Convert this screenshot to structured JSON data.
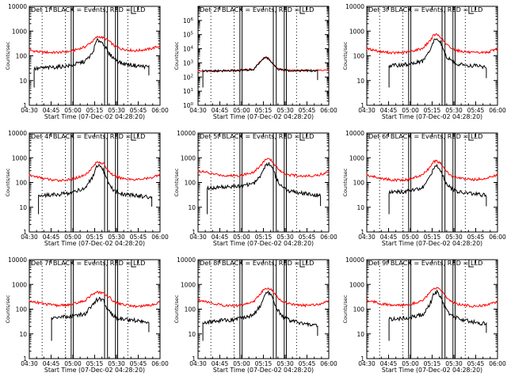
{
  "figure": {
    "title_template": "Det {n}f BLACK = Events, RED = LLD",
    "ylabel": "Counts/sec",
    "xlabel": "Start Time (07-Dec-02 04:28:20)",
    "x_tick_labels": [
      "04:30",
      "04:45",
      "05:00",
      "05:15",
      "05:30",
      "05:45",
      "06:00"
    ],
    "x_ticks_minutes_after_start": [
      1.67,
      16.67,
      31.67,
      46.67,
      61.67,
      76.67,
      91.67
    ],
    "x_range_minutes": [
      1.67,
      91.67
    ],
    "dotted_lines_minutes": [
      10.5,
      26.5,
      53.5,
      69.5
    ],
    "solid_line_pairs_minutes": [
      [
        30.5,
        32.0
      ],
      [
        53.5,
        55.5
      ],
      [
        61.0,
        62.5
      ]
    ],
    "event_flag_minutes": 72.0,
    "colors": {
      "events": "#000000",
      "lld": "#ff0000",
      "axes": "#000000",
      "background": "#ffffff"
    }
  },
  "chart_data": [
    {
      "type": "line",
      "title": "Det 1f BLACK = Events, RED = LLD",
      "detector": "1f",
      "ylabel": "Counts/sec",
      "xlabel": "Start Time (07-Dec-02 04:28:20)",
      "yscale": "log",
      "ylim": [
        1,
        10000
      ],
      "y_tick_labels": [
        "1",
        "10",
        "100",
        "1000",
        "10000"
      ],
      "x_minutes": [
        0,
        7,
        10,
        20,
        30,
        40,
        45,
        48,
        50,
        53,
        56,
        60,
        65,
        75,
        85,
        92
      ],
      "series": [
        {
          "name": "LLD",
          "color": "#ff0000",
          "values": [
            170,
            150,
            140,
            135,
            150,
            230,
            380,
            560,
            590,
            520,
            420,
            260,
            190,
            160,
            190,
            260
          ]
        },
        {
          "name": "Events",
          "color": "#000000",
          "x_start": 5,
          "x_end": 84,
          "values": [
            null,
            30,
            32,
            35,
            40,
            60,
            120,
            400,
            420,
            300,
            130,
            80,
            50,
            40,
            35,
            null
          ]
        }
      ]
    },
    {
      "type": "line",
      "title": "Det 2f BLACK = Events, RED = LLD",
      "detector": "2f",
      "ylabel": "Counts/sec",
      "xlabel": "Start Time (07-Dec-02 04:28:20)",
      "yscale": "log",
      "ylim": [
        1,
        10000000
      ],
      "y_tick_labels": [
        "10^0",
        "10^1",
        "10^2",
        "10^3",
        "10^4",
        "10^5",
        "10^6"
      ],
      "x_minutes": [
        0,
        7,
        10,
        20,
        30,
        40,
        45,
        48,
        50,
        53,
        56,
        60,
        65,
        75,
        85,
        92
      ],
      "series": [
        {
          "name": "LLD",
          "color": "#ff0000",
          "values": [
            280,
            270,
            270,
            280,
            300,
            350,
            1500,
            2600,
            2200,
            900,
            400,
            320,
            300,
            290,
            300,
            320
          ]
        },
        {
          "name": "Events",
          "color": "#000000",
          "x_start": 5,
          "x_end": 84,
          "values": [
            null,
            260,
            260,
            270,
            290,
            340,
            1400,
            2400,
            2000,
            850,
            380,
            300,
            290,
            280,
            280,
            null
          ]
        }
      ]
    },
    {
      "type": "line",
      "title": "Det 3f BLACK = Events, RED = LLD",
      "detector": "3f",
      "ylabel": "Counts/sec",
      "xlabel": "Start Time (07-Dec-02 04:28:20)",
      "yscale": "log",
      "ylim": [
        1,
        10000
      ],
      "y_tick_labels": [
        "1",
        "10",
        "100",
        "1000",
        "10000"
      ],
      "x_minutes": [
        0,
        7,
        10,
        20,
        30,
        40,
        45,
        48,
        50,
        53,
        56,
        60,
        65,
        75,
        85,
        92
      ],
      "series": [
        {
          "name": "LLD",
          "color": "#ff0000",
          "values": [
            200,
            170,
            150,
            130,
            140,
            200,
            400,
            700,
            720,
            550,
            300,
            200,
            160,
            130,
            140,
            200
          ]
        },
        {
          "name": "Events",
          "color": "#000000",
          "x_start": 17,
          "x_end": 84,
          "values": [
            null,
            null,
            null,
            40,
            45,
            60,
            150,
            420,
            500,
            300,
            100,
            60,
            45,
            40,
            35,
            null
          ]
        }
      ]
    },
    {
      "type": "line",
      "title": "Det 4f BLACK = Events, RED = LLD",
      "detector": "4f",
      "ylabel": "Counts/sec",
      "xlabel": "Start Time (07-Dec-02 04:28:20)",
      "yscale": "log",
      "ylim": [
        1,
        10000
      ],
      "y_tick_labels": [
        "1",
        "10",
        "100",
        "1000",
        "10000"
      ],
      "x_minutes": [
        0,
        7,
        10,
        20,
        30,
        40,
        45,
        48,
        50,
        53,
        56,
        60,
        65,
        75,
        85,
        92
      ],
      "series": [
        {
          "name": "LLD",
          "color": "#ff0000",
          "values": [
            200,
            170,
            150,
            120,
            130,
            200,
            400,
            650,
            680,
            550,
            300,
            180,
            150,
            130,
            150,
            220
          ]
        },
        {
          "name": "Events",
          "color": "#000000",
          "x_start": 8,
          "x_end": 86,
          "values": [
            null,
            30,
            30,
            32,
            38,
            60,
            150,
            400,
            450,
            280,
            90,
            45,
            35,
            30,
            25,
            null
          ]
        }
      ]
    },
    {
      "type": "line",
      "title": "Det 5f BLACK = Events, RED = LLD",
      "detector": "5f",
      "ylabel": "Counts/sec",
      "xlabel": "Start Time (07-Dec-02 04:28:20)",
      "yscale": "log",
      "ylim": [
        1,
        10000
      ],
      "y_tick_labels": [
        "1",
        "10",
        "100",
        "1000",
        "10000"
      ],
      "x_minutes": [
        0,
        7,
        10,
        20,
        30,
        40,
        45,
        48,
        50,
        53,
        56,
        60,
        65,
        75,
        85,
        92
      ],
      "series": [
        {
          "name": "LLD",
          "color": "#ff0000",
          "values": [
            300,
            260,
            230,
            190,
            190,
            260,
            500,
            850,
            900,
            700,
            400,
            250,
            200,
            180,
            200,
            280
          ]
        },
        {
          "name": "Events",
          "color": "#000000",
          "x_start": 8,
          "x_end": 86,
          "values": [
            null,
            55,
            60,
            65,
            70,
            90,
            200,
            500,
            600,
            400,
            130,
            60,
            45,
            35,
            30,
            null
          ]
        }
      ]
    },
    {
      "type": "line",
      "title": "Det 6f BLACK = Events, RED = LLD",
      "detector": "6f",
      "ylabel": "Counts/sec",
      "xlabel": "Start Time (07-Dec-02 04:28:20)",
      "yscale": "log",
      "ylim": [
        1,
        10000
      ],
      "y_tick_labels": [
        "1",
        "10",
        "100",
        "1000",
        "10000"
      ],
      "x_minutes": [
        0,
        7,
        10,
        20,
        30,
        40,
        45,
        48,
        50,
        53,
        56,
        60,
        65,
        75,
        85,
        92
      ],
      "series": [
        {
          "name": "LLD",
          "color": "#ff0000",
          "values": [
            200,
            170,
            150,
            125,
            130,
            200,
            400,
            700,
            720,
            550,
            300,
            180,
            150,
            130,
            150,
            210
          ]
        },
        {
          "name": "Events",
          "color": "#000000",
          "x_start": 17,
          "x_end": 84,
          "values": [
            null,
            null,
            null,
            40,
            45,
            60,
            150,
            420,
            500,
            300,
            100,
            55,
            40,
            35,
            30,
            null
          ]
        }
      ]
    },
    {
      "type": "line",
      "title": "Det 7f BLACK = Events, RED = LLD",
      "detector": "7f",
      "ylabel": "Counts/sec",
      "xlabel": "Start Time (07-Dec-02 04:28:20)",
      "yscale": "log",
      "ylim": [
        1,
        10000
      ],
      "y_tick_labels": [
        "1",
        "10",
        "100",
        "1000",
        "10000"
      ],
      "x_minutes": [
        0,
        7,
        10,
        20,
        30,
        40,
        45,
        48,
        50,
        53,
        56,
        60,
        65,
        75,
        85,
        92
      ],
      "series": [
        {
          "name": "LLD",
          "color": "#ff0000",
          "values": [
            220,
            190,
            170,
            140,
            150,
            220,
            400,
            480,
            470,
            420,
            330,
            200,
            160,
            130,
            140,
            200
          ]
        },
        {
          "name": "Events",
          "color": "#000000",
          "x_start": 17,
          "x_end": 84,
          "values": [
            null,
            null,
            null,
            45,
            50,
            65,
            140,
            230,
            250,
            200,
            90,
            50,
            40,
            35,
            30,
            null
          ]
        }
      ]
    },
    {
      "type": "line",
      "title": "Det 8f BLACK = Events, RED = LLD",
      "detector": "8f",
      "ylabel": "Counts/sec",
      "xlabel": "Start Time (07-Dec-02 04:28:20)",
      "yscale": "log",
      "ylim": [
        1,
        10000
      ],
      "y_tick_labels": [
        "1",
        "10",
        "100",
        "1000",
        "10000"
      ],
      "x_minutes": [
        0,
        7,
        10,
        20,
        30,
        40,
        45,
        48,
        50,
        53,
        56,
        60,
        65,
        75,
        85,
        92
      ],
      "series": [
        {
          "name": "LLD",
          "color": "#ff0000",
          "values": [
            250,
            210,
            180,
            140,
            140,
            200,
            450,
            700,
            720,
            550,
            320,
            200,
            160,
            140,
            160,
            230
          ]
        },
        {
          "name": "Events",
          "color": "#000000",
          "x_start": 5,
          "x_end": 84,
          "values": [
            null,
            30,
            32,
            35,
            40,
            60,
            150,
            400,
            450,
            300,
            100,
            50,
            35,
            25,
            20,
            null
          ]
        }
      ]
    },
    {
      "type": "line",
      "title": "Det 9f BLACK = Events, RED = LLD",
      "detector": "9f",
      "ylabel": "Counts/sec",
      "xlabel": "Start Time (07-Dec-02 04:28:20)",
      "yscale": "log",
      "ylim": [
        1,
        10000
      ],
      "y_tick_labels": [
        "1",
        "10",
        "100",
        "1000",
        "10000"
      ],
      "x_minutes": [
        0,
        7,
        10,
        20,
        30,
        40,
        45,
        48,
        50,
        53,
        56,
        60,
        65,
        75,
        85,
        92
      ],
      "series": [
        {
          "name": "LLD",
          "color": "#ff0000",
          "values": [
            230,
            200,
            170,
            140,
            150,
            220,
            450,
            700,
            700,
            550,
            320,
            200,
            160,
            130,
            150,
            210
          ]
        },
        {
          "name": "Events",
          "color": "#000000",
          "x_start": 17,
          "x_end": 84,
          "values": [
            null,
            null,
            null,
            40,
            45,
            60,
            150,
            420,
            500,
            300,
            100,
            55,
            40,
            30,
            25,
            null
          ]
        }
      ]
    }
  ]
}
